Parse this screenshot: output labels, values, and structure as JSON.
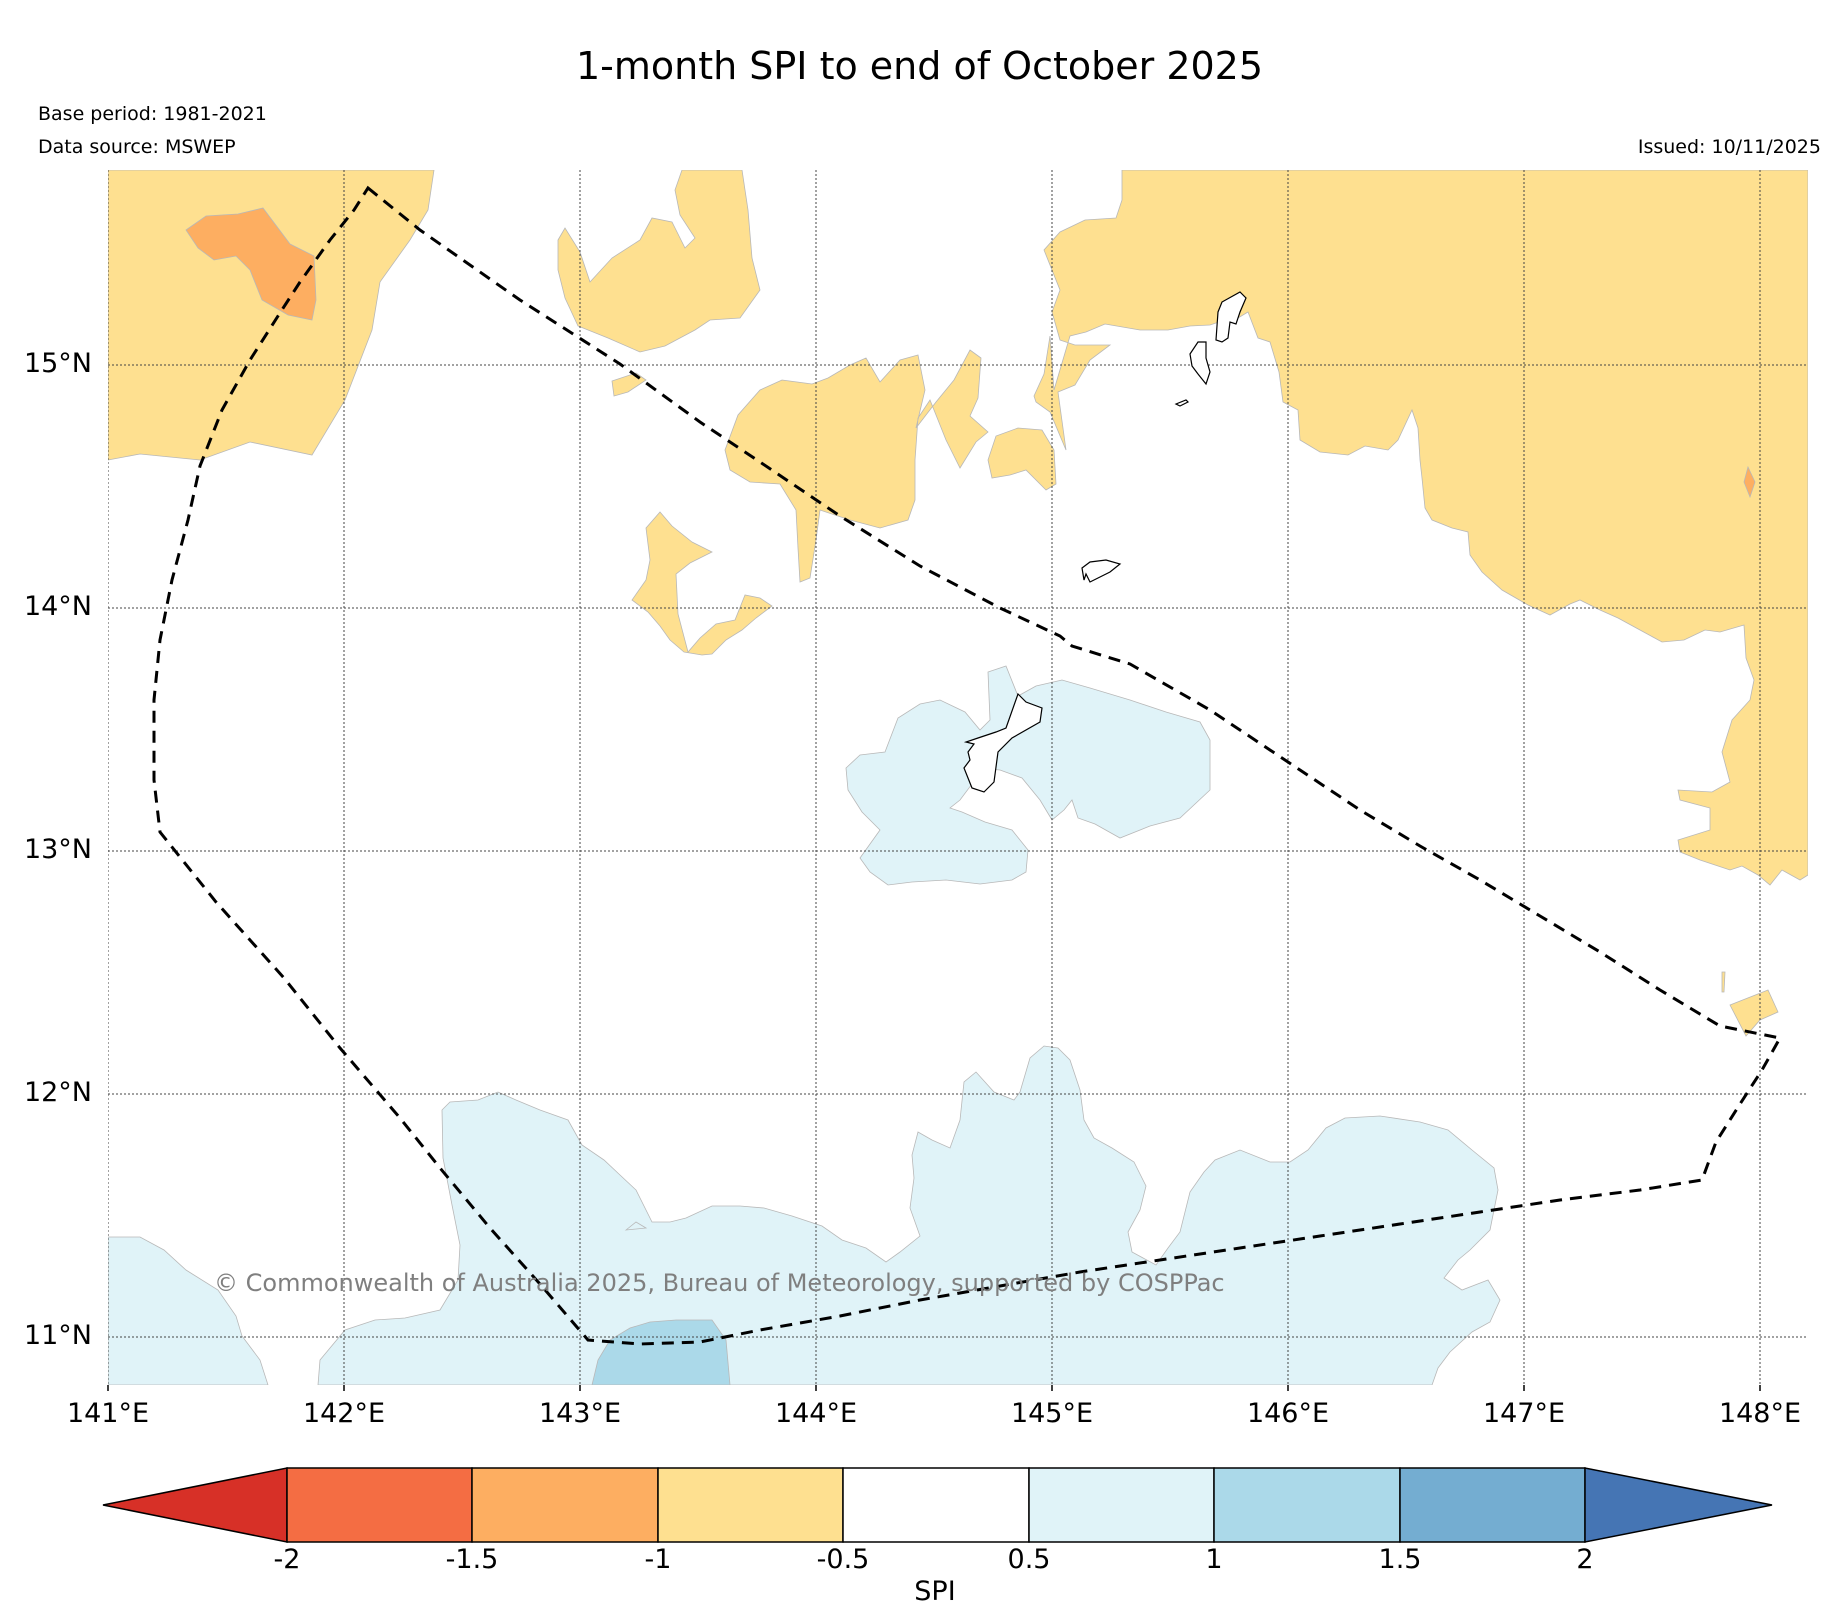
{
  "map": {
    "title": "1-month SPI to end of October 2025",
    "base_period": "Base period: 1981-2021",
    "data_source": "Data source: MSWEP",
    "issued": "Issued: 10/11/2025",
    "copyright": "© Commonwealth of Australia 2025, Bureau of Meteorology, supported by COSPPac",
    "lat_labels": [
      "15°N",
      "14°N",
      "13°N",
      "12°N",
      "11°N"
    ],
    "lon_labels": [
      "141°E",
      "142°E",
      "143°E",
      "144°E",
      "145°E",
      "146°E",
      "147°E",
      "148°E"
    ],
    "regions": {
      "dry": "SPI -1 to -0.5",
      "moderately_dry": "SPI -1.5 to -1",
      "wet": "SPI 0.5 to 1",
      "moderately_wet": "SPI 1 to 1.5"
    }
  },
  "legend": {
    "title": "SPI",
    "tick_labels": [
      "-2",
      "-1.5",
      "-1",
      "-0.5",
      "0.5",
      "1",
      "1.5",
      "2"
    ],
    "colors": [
      "#d73027",
      "#f46d43",
      "#fdae61",
      "#fee090",
      "#ffffff",
      "#e0f3f8",
      "#abd9e9",
      "#74add1",
      "#4575b4"
    ]
  }
}
